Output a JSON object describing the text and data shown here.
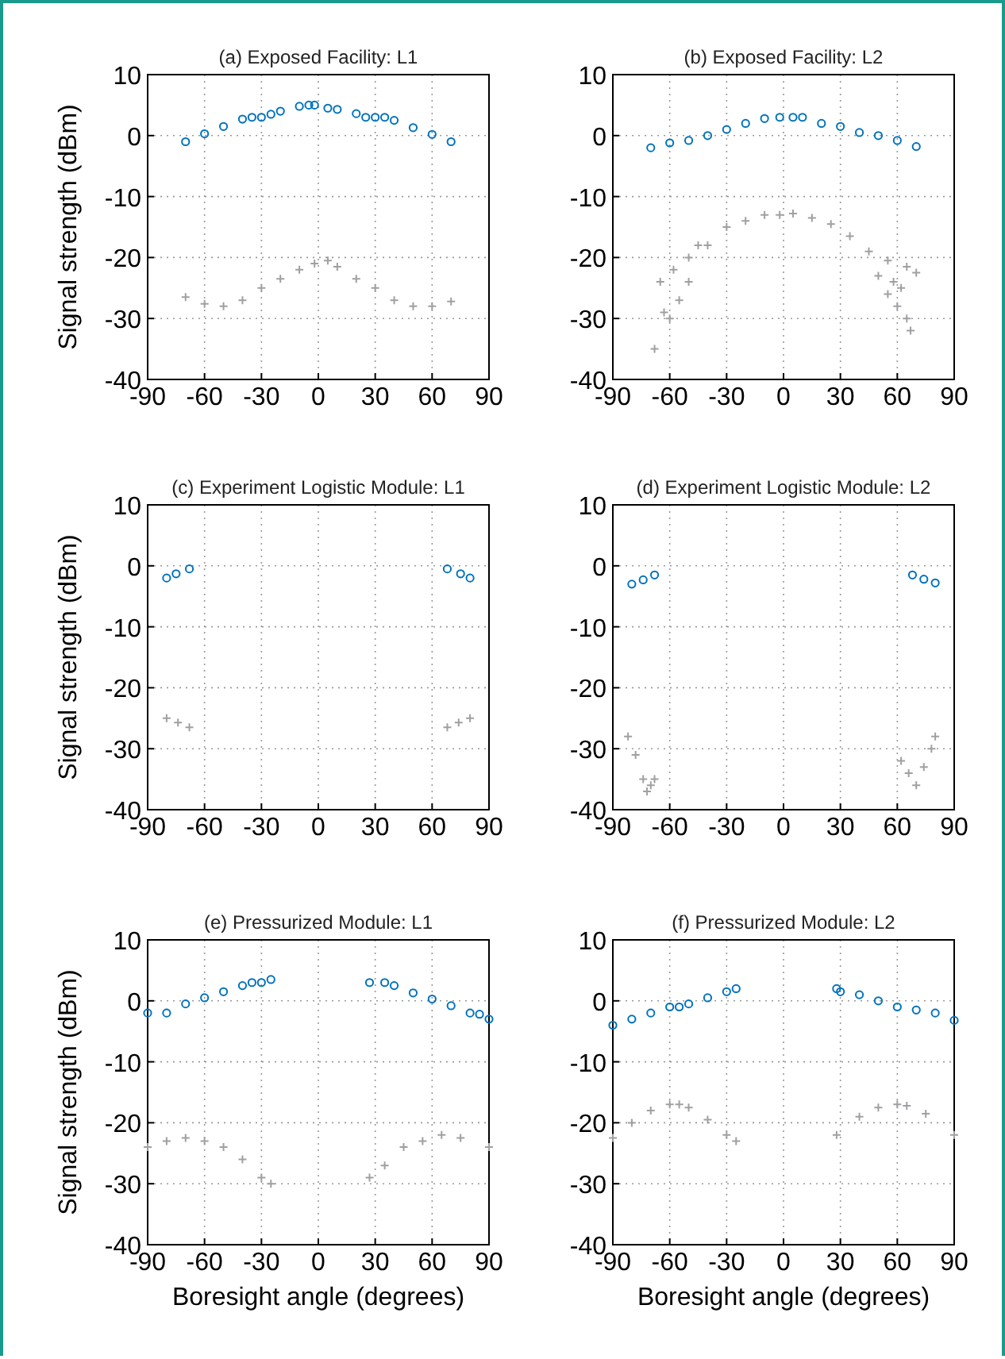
{
  "chart_data": [
    {
      "type": "scatter",
      "title": "(a) Exposed Facility: L1",
      "ylabel": "Signal strength (dBm)",
      "xlim": [
        -90,
        90
      ],
      "xticks": [
        -90,
        -60,
        -30,
        0,
        30,
        60,
        90
      ],
      "ylim": [
        -40,
        10
      ],
      "yticks": [
        -40,
        -30,
        -20,
        -10,
        0,
        10
      ],
      "grid": true,
      "line_style": "dotted",
      "series": [
        {
          "color": "#0072bd",
          "marker": "circle",
          "x": [
            -70,
            -60,
            -50,
            -40,
            -35,
            -30,
            -25,
            -20,
            -10,
            -5,
            -2,
            5,
            10,
            20,
            25,
            30,
            35,
            40,
            50,
            60,
            70
          ],
          "values": [
            -1,
            0.3,
            1.5,
            2.7,
            3,
            3,
            3.5,
            4,
            4.8,
            5,
            5,
            4.5,
            4.3,
            3.6,
            3,
            3,
            3,
            2.5,
            1.3,
            0.2,
            -1
          ]
        },
        {
          "color": "#a0a0a4",
          "marker": "cross",
          "x": [
            -70,
            -60,
            -50,
            -40,
            -30,
            -20,
            -10,
            -2,
            5,
            10,
            20,
            30,
            40,
            50,
            60,
            70
          ],
          "values": [
            -26.5,
            -27.6,
            -28,
            -27,
            -25,
            -23.5,
            -22,
            -21,
            -20.5,
            -21.5,
            -23.5,
            -25,
            -27,
            -28,
            -28,
            -27.2
          ]
        }
      ]
    },
    {
      "type": "scatter",
      "title": "(b) Exposed Facility: L2",
      "xlim": [
        -90,
        90
      ],
      "xticks": [
        -90,
        -60,
        -30,
        0,
        30,
        60,
        90
      ],
      "ylim": [
        -40,
        10
      ],
      "yticks": [
        -40,
        -30,
        -20,
        -10,
        0,
        10
      ],
      "grid": true,
      "line_style": "dotted",
      "series": [
        {
          "color": "#0072bd",
          "marker": "circle",
          "x": [
            -70,
            -60,
            -50,
            -40,
            -30,
            -20,
            -10,
            -2,
            5,
            10,
            20,
            30,
            40,
            50,
            60,
            70
          ],
          "values": [
            -2,
            -1.2,
            -0.8,
            0,
            1,
            2,
            2.8,
            3,
            3,
            3,
            2,
            1.5,
            0.5,
            0,
            -0.8,
            -1.8
          ]
        },
        {
          "color": "#a0a0a4",
          "marker": "cross",
          "x": [
            -68,
            -60,
            -50,
            -40,
            -30,
            -20,
            -10,
            -2,
            5,
            15,
            25,
            35,
            45,
            55,
            65,
            70,
            -65,
            -63,
            -58,
            -55,
            -50,
            -45,
            50,
            55,
            58,
            60,
            62,
            65,
            67
          ],
          "values": [
            -35,
            -30,
            -24,
            -18,
            -15,
            -14,
            -13,
            -13,
            -12.8,
            -13.5,
            -14.5,
            -16.5,
            -19,
            -20.5,
            -21.5,
            -22.5,
            -24,
            -29,
            -22,
            -27,
            -20,
            -18,
            -23,
            -26,
            -24,
            -28,
            -25,
            -30,
            -32
          ]
        }
      ]
    },
    {
      "type": "scatter",
      "title": "(c) Experiment Logistic Module: L1",
      "ylabel": "Signal strength (dBm)",
      "xlim": [
        -90,
        90
      ],
      "xticks": [
        -90,
        -60,
        -30,
        0,
        30,
        60,
        90
      ],
      "ylim": [
        -40,
        10
      ],
      "yticks": [
        -40,
        -30,
        -20,
        -10,
        0,
        10
      ],
      "grid": true,
      "line_style": "dotted",
      "series": [
        {
          "color": "#0072bd",
          "marker": "circle",
          "x": [
            -80,
            -75,
            -68,
            68,
            75,
            80
          ],
          "values": [
            -2,
            -1.3,
            -0.5,
            -0.5,
            -1.3,
            -2
          ]
        },
        {
          "color": "#a0a0a4",
          "marker": "cross",
          "x": [
            -80,
            -74,
            -68,
            68,
            74,
            80
          ],
          "values": [
            -25,
            -25.7,
            -26.5,
            -26.5,
            -25.7,
            -25
          ]
        }
      ]
    },
    {
      "type": "scatter",
      "title": "(d) Experiment Logistic Module: L2",
      "xlim": [
        -90,
        90
      ],
      "xticks": [
        -90,
        -60,
        -30,
        0,
        30,
        60,
        90
      ],
      "ylim": [
        -40,
        10
      ],
      "yticks": [
        -40,
        -30,
        -20,
        -10,
        0,
        10
      ],
      "grid": true,
      "line_style": "dotted",
      "series": [
        {
          "color": "#0072bd",
          "marker": "circle",
          "x": [
            -80,
            -74,
            -68,
            68,
            74,
            80
          ],
          "values": [
            -3,
            -2.3,
            -1.5,
            -1.5,
            -2.2,
            -2.8
          ]
        },
        {
          "color": "#a0a0a4",
          "marker": "cross",
          "x": [
            -82,
            -78,
            -74,
            -72,
            -70,
            -68,
            62,
            66,
            70,
            74,
            78,
            80
          ],
          "values": [
            -28,
            -31,
            -35,
            -37,
            -36,
            -35,
            -32,
            -34,
            -36,
            -33,
            -30,
            -28
          ]
        }
      ]
    },
    {
      "type": "scatter",
      "title": "(e) Pressurized Module: L1",
      "xlabel": "Boresight angle (degrees)",
      "ylabel": "Signal strength (dBm)",
      "xlim": [
        -90,
        90
      ],
      "xticks": [
        -90,
        -60,
        -30,
        0,
        30,
        60,
        90
      ],
      "ylim": [
        -40,
        10
      ],
      "yticks": [
        -40,
        -30,
        -20,
        -10,
        0,
        10
      ],
      "grid": true,
      "line_style": "dotted",
      "series": [
        {
          "color": "#0072bd",
          "marker": "circle",
          "x": [
            -90,
            -80,
            -70,
            -60,
            -50,
            -40,
            -35,
            -30,
            -25,
            27,
            35,
            40,
            50,
            60,
            70,
            80,
            85,
            90
          ],
          "values": [
            -2,
            -2,
            -0.5,
            0.5,
            1.5,
            2.5,
            3,
            3,
            3.5,
            3,
            3,
            2.5,
            1.3,
            0.3,
            -0.8,
            -2,
            -2.2,
            -3
          ]
        },
        {
          "color": "#a0a0a4",
          "marker": "cross",
          "x": [
            -90,
            -80,
            -70,
            -60,
            -50,
            -40,
            -30,
            -25,
            27,
            35,
            45,
            55,
            65,
            75,
            90
          ],
          "values": [
            -24,
            -23,
            -22.5,
            -23,
            -24,
            -26,
            -29,
            -30,
            -29,
            -27,
            -24,
            -23,
            -22,
            -22.5,
            -24
          ]
        }
      ]
    },
    {
      "type": "scatter",
      "title": "(f) Pressurized Module: L2",
      "xlabel": "Boresight angle (degrees)",
      "xlim": [
        -90,
        90
      ],
      "xticks": [
        -90,
        -60,
        -30,
        0,
        30,
        60,
        90
      ],
      "ylim": [
        -40,
        10
      ],
      "yticks": [
        -40,
        -30,
        -20,
        -10,
        0,
        10
      ],
      "grid": true,
      "line_style": "dotted",
      "series": [
        {
          "color": "#0072bd",
          "marker": "circle",
          "x": [
            -90,
            -80,
            -70,
            -60,
            -55,
            -50,
            -40,
            -30,
            -25,
            28,
            30,
            40,
            50,
            60,
            70,
            80,
            90
          ],
          "values": [
            -4,
            -3,
            -2,
            -1,
            -1,
            -0.5,
            0.5,
            1.5,
            2,
            2,
            1.5,
            1,
            0,
            -1,
            -1.5,
            -2,
            -3.2
          ]
        },
        {
          "color": "#a0a0a4",
          "marker": "cross",
          "x": [
            -90,
            -80,
            -70,
            -60,
            -55,
            -50,
            -40,
            -30,
            -25,
            28,
            40,
            50,
            60,
            65,
            75,
            90
          ],
          "values": [
            -22.5,
            -20,
            -18,
            -17,
            -17,
            -17.5,
            -19.5,
            -22,
            -23,
            -22,
            -19,
            -17.5,
            -17,
            -17.2,
            -18.5,
            -22
          ]
        }
      ]
    }
  ]
}
